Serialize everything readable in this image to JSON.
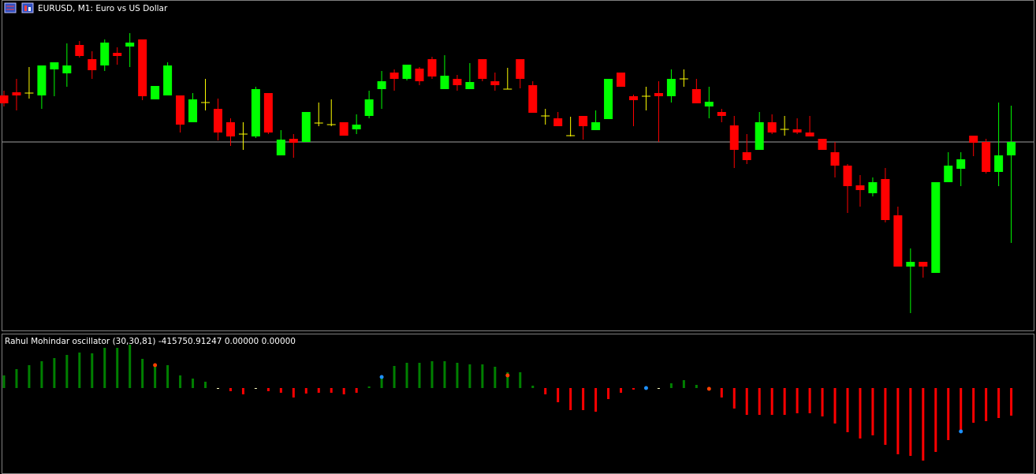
{
  "window_title": "EURUSD, M1:  Euro vs US Dollar",
  "chart_data": [
    {
      "type": "candlestick",
      "open": [
        299,
        303,
        302,
        299,
        332,
        327,
        363,
        345,
        337,
        353,
        361,
        370,
        294,
        299,
        299,
        265,
        290,
        282,
        265,
        250,
        247,
        302,
        223,
        244,
        240,
        264,
        262,
        265,
        256,
        273,
        307,
        328,
        320,
        333,
        345,
        307,
        320,
        307,
        345,
        317,
        307,
        345,
        312,
        273,
        270,
        248,
        273,
        255,
        269,
        328,
        298,
        298,
        302,
        298,
        320,
        307,
        285,
        278,
        261,
        227,
        230,
        265,
        256,
        256,
        252,
        244,
        227,
        210,
        185,
        175,
        193,
        147,
        82,
        88,
        74,
        189,
        206,
        248,
        240,
        202,
        223
      ],
      "high": [
        305,
        320,
        335,
        337,
        341,
        365,
        368,
        355,
        370,
        360,
        378,
        370,
        311,
        341,
        299,
        302,
        320,
        295,
        270,
        265,
        310,
        302,
        255,
        250,
        278,
        290,
        294,
        265,
        275,
        305,
        330,
        332,
        338,
        335,
        348,
        350,
        325,
        340,
        345,
        328,
        334,
        345,
        317,
        282,
        278,
        272,
        273,
        280,
        320,
        328,
        300,
        310,
        317,
        332,
        332,
        320,
        310,
        282,
        273,
        250,
        278,
        275,
        273,
        270,
        273,
        244,
        240,
        212,
        198,
        195,
        207,
        158,
        105,
        88,
        189,
        227,
        227,
        248,
        244,
        290,
        286
      ],
      "low": [
        285,
        280,
        295,
        282,
        298,
        310,
        347,
        320,
        330,
        338,
        335,
        293,
        294,
        299,
        252,
        265,
        280,
        242,
        235,
        230,
        245,
        250,
        223,
        220,
        240,
        260,
        260,
        248,
        250,
        270,
        282,
        305,
        318,
        312,
        320,
        307,
        305,
        307,
        317,
        305,
        307,
        308,
        277,
        262,
        260,
        247,
        243,
        255,
        269,
        310,
        260,
        280,
        240,
        290,
        310,
        289,
        270,
        265,
        207,
        212,
        230,
        250,
        248,
        250,
        247,
        230,
        195,
        150,
        158,
        171,
        138,
        82,
        23,
        68,
        74,
        189,
        184,
        222,
        200,
        184,
        112
      ],
      "close": [
        289,
        299,
        302,
        337,
        341,
        337,
        349,
        331,
        366,
        349,
        366,
        298,
        311,
        337,
        262,
        294,
        290,
        252,
        247,
        250,
        307,
        252,
        243,
        239,
        278,
        264,
        262,
        248,
        262,
        294,
        317,
        320,
        338,
        317,
        323,
        324,
        312,
        316,
        320,
        312,
        307,
        320,
        277,
        273,
        260,
        248,
        260,
        265,
        320,
        310,
        293,
        298,
        298,
        320,
        320,
        289,
        291,
        273,
        230,
        217,
        265,
        252,
        256,
        252,
        247,
        230,
        210,
        184,
        179,
        189,
        141,
        82,
        88,
        82,
        189,
        210,
        218,
        239,
        202,
        223,
        240
      ],
      "ylim": [
        0,
        420
      ],
      "up_color": "#00ff00",
      "down_color": "#ff0000",
      "doji_color": "#ffff00",
      "price_line": 240,
      "price_line_color": "#a0a0a0"
    },
    {
      "type": "bar",
      "title": "Rahul Mohindar oscillator (30,30,81) -415750.91247 0.00000 0.00000",
      "values": [
        16,
        24,
        29,
        34,
        38,
        42,
        45,
        44,
        51,
        51,
        55,
        37,
        27,
        29,
        16,
        12,
        8,
        0,
        -4,
        -8,
        0,
        -4,
        -6,
        -12,
        -7,
        -6,
        -6,
        -8,
        -6,
        2,
        14,
        28,
        32,
        32,
        34,
        34,
        32,
        30,
        30,
        27,
        20,
        20,
        3,
        -8,
        -18,
        -28,
        -28,
        -30,
        -14,
        -6,
        -2,
        0,
        0,
        6,
        10,
        4,
        -2,
        -12,
        -26,
        -34,
        -34,
        -34,
        -34,
        -32,
        -32,
        -36,
        -45,
        -56,
        -64,
        -60,
        -72,
        -84,
        -86,
        -92,
        -81,
        -66,
        -54,
        -44,
        -42,
        -38,
        -35
      ],
      "ylim": [
        -108,
        69
      ],
      "positive_color": "#008000",
      "negative_color": "#ff0000",
      "zero_color": "#ffffc0",
      "signals": [
        {
          "color": "#ff4000",
          "values": [
            null,
            null,
            null,
            null,
            null,
            null,
            null,
            null,
            null,
            null,
            null,
            null,
            29,
            null,
            null,
            null,
            null,
            null,
            null,
            null,
            null,
            null,
            null,
            null,
            null,
            null,
            null,
            null,
            null,
            null,
            null,
            null,
            null,
            null,
            null,
            null,
            null,
            null,
            null,
            null,
            16,
            null,
            null,
            null,
            null,
            null,
            null,
            null,
            null,
            null,
            null,
            null,
            null,
            null,
            null,
            null,
            -1,
            null,
            null,
            null,
            null,
            null,
            null,
            null,
            null,
            null,
            null,
            null,
            null,
            null,
            null,
            null,
            null,
            null,
            null,
            null,
            null,
            null,
            null,
            null,
            null
          ]
        },
        {
          "color": "#1e90ff",
          "values": [
            null,
            null,
            null,
            null,
            null,
            null,
            null,
            null,
            null,
            null,
            null,
            null,
            null,
            null,
            null,
            null,
            null,
            null,
            null,
            null,
            null,
            null,
            null,
            null,
            null,
            null,
            null,
            null,
            null,
            null,
            14,
            null,
            null,
            null,
            null,
            null,
            null,
            null,
            null,
            null,
            null,
            null,
            null,
            null,
            null,
            null,
            null,
            null,
            null,
            null,
            null,
            0,
            null,
            null,
            null,
            null,
            null,
            null,
            null,
            null,
            null,
            null,
            null,
            null,
            null,
            null,
            null,
            null,
            null,
            null,
            null,
            null,
            null,
            null,
            null,
            null,
            -55,
            null,
            null,
            null,
            null
          ]
        }
      ]
    }
  ]
}
